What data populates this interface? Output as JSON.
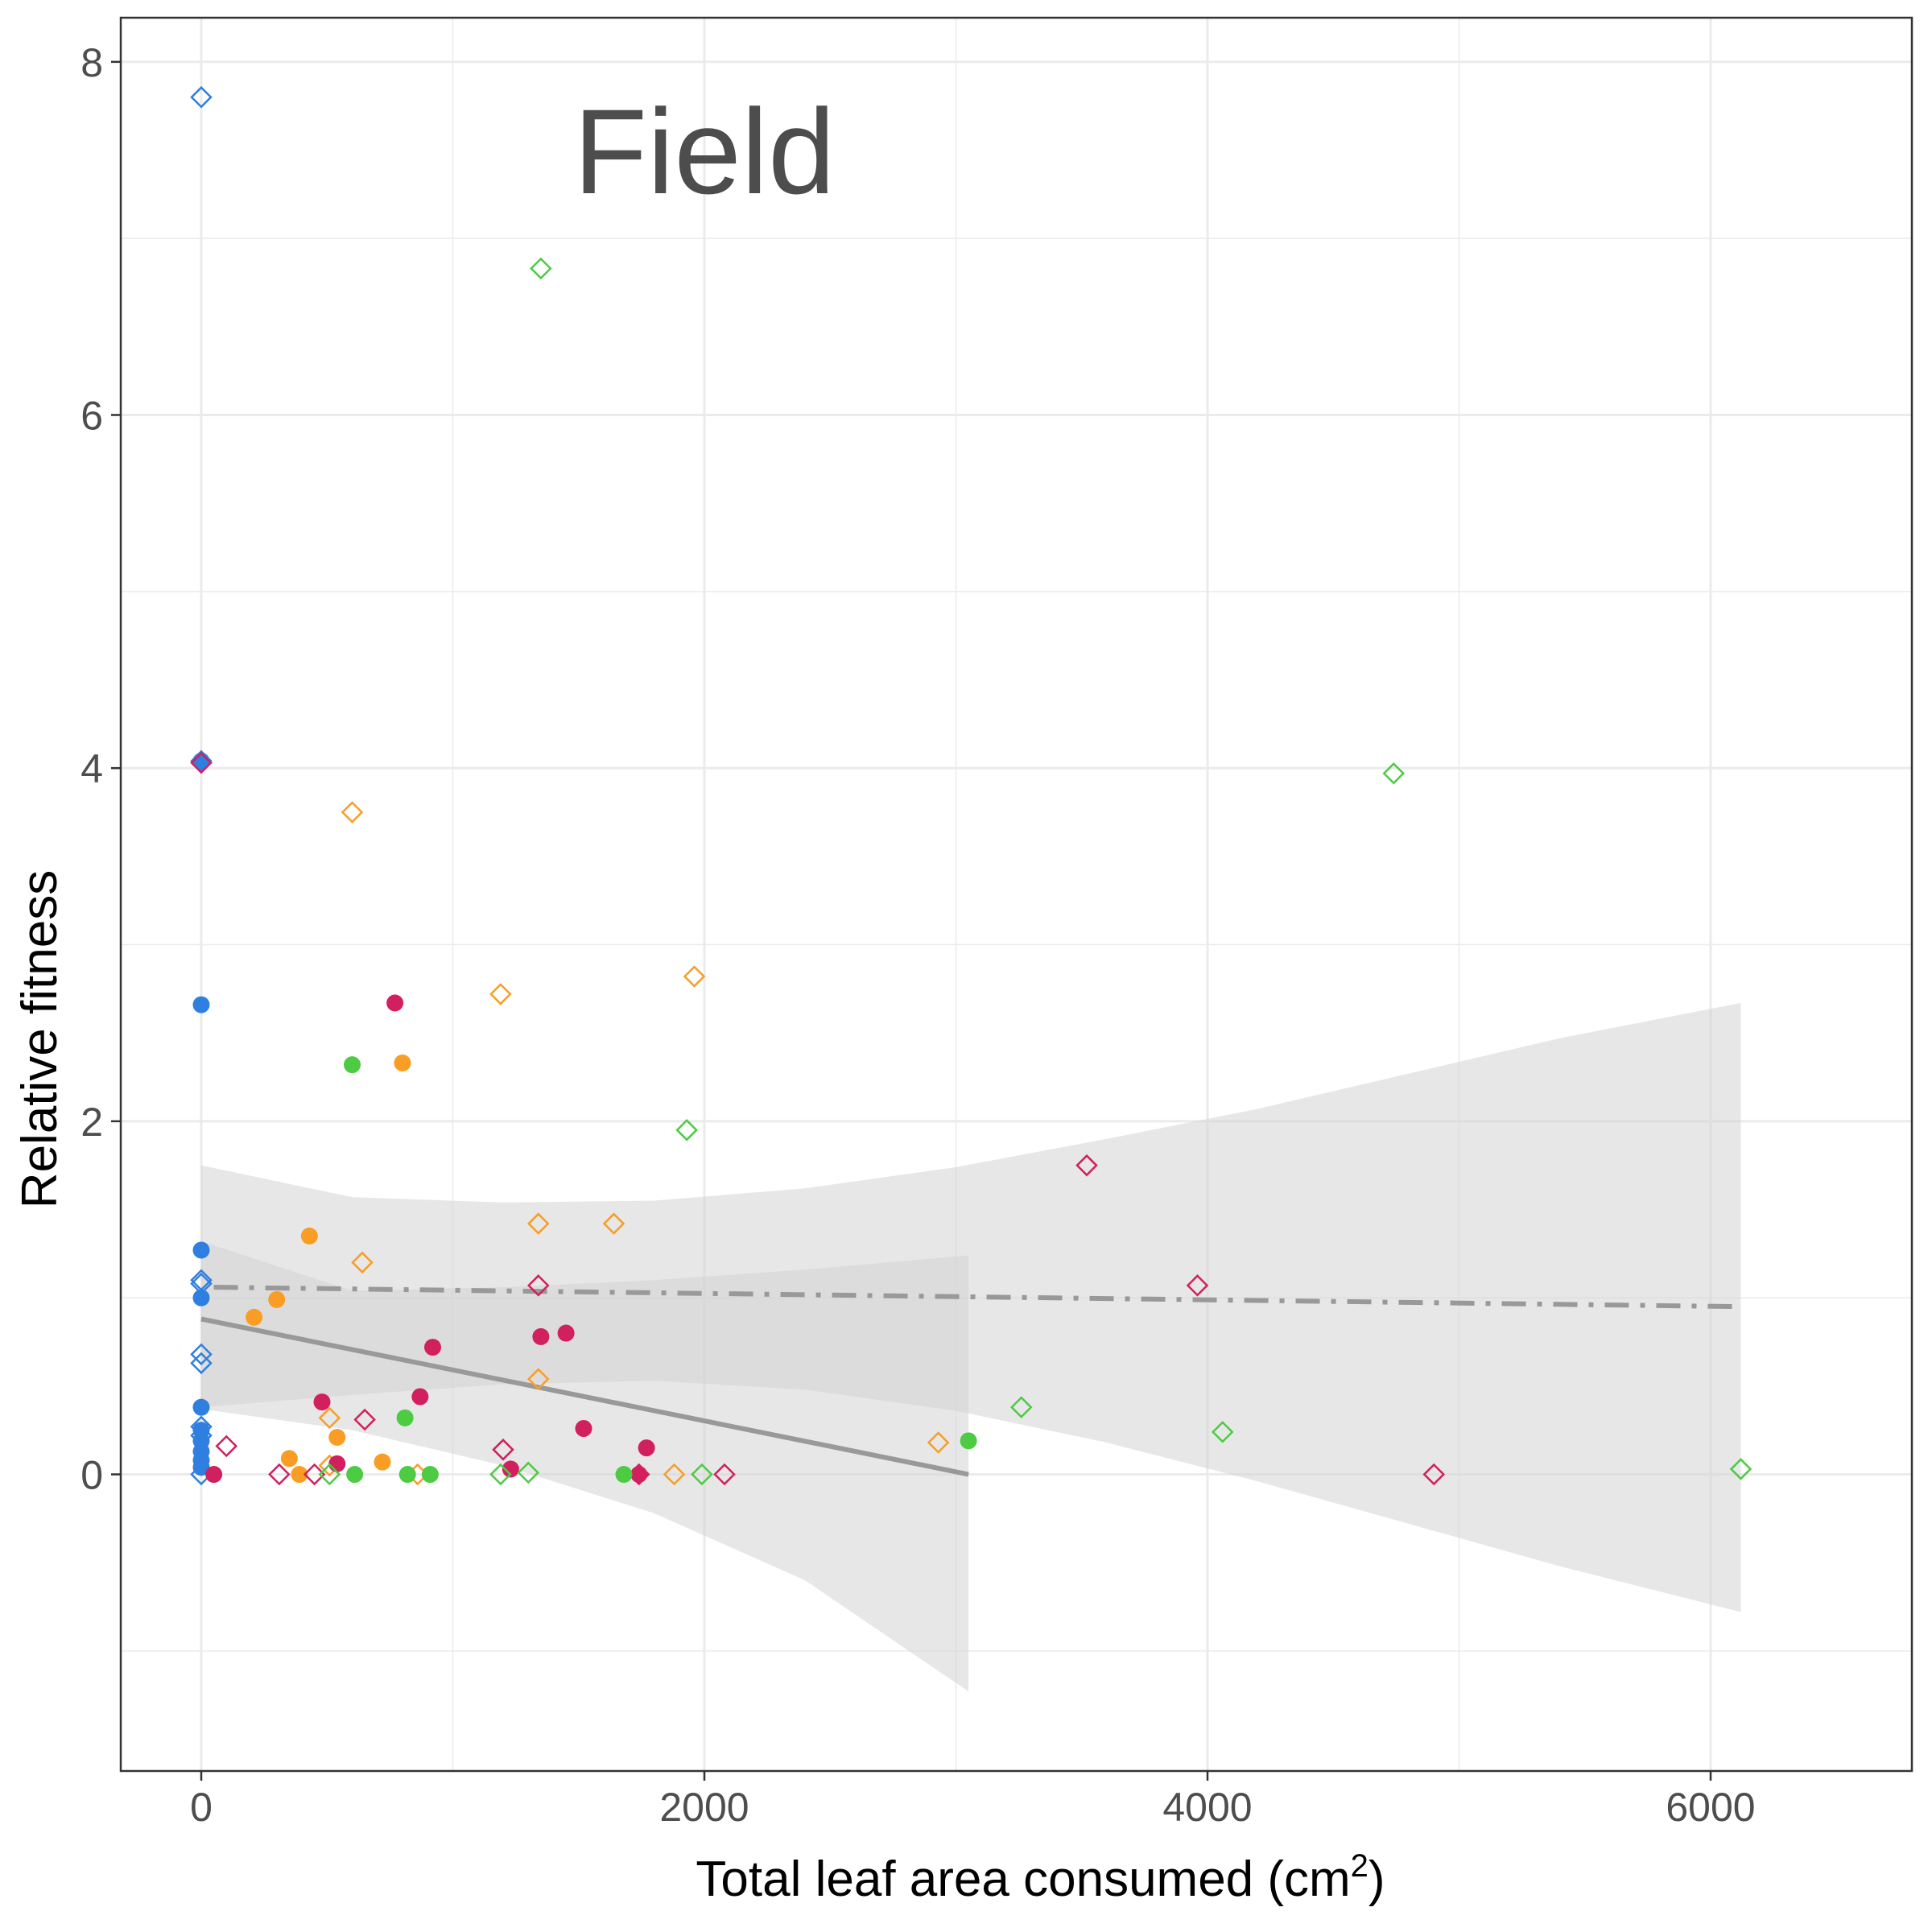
{
  "chart_data": {
    "type": "scatter",
    "title": "Field",
    "xlabel": "Total leaf area consumed (cm",
    "xlabel_superscript": "2",
    "xlabel_suffix": ")",
    "ylabel": "Relative fitness",
    "xlim": [
      -320,
      6800
    ],
    "ylim": [
      -1.68,
      8.25
    ],
    "x_ticks": [
      0,
      2000,
      4000,
      6000
    ],
    "x_tick_labels": [
      "0",
      "2000",
      "4000",
      "6000"
    ],
    "y_ticks": [
      0,
      2,
      4,
      6,
      8
    ],
    "y_tick_labels": [
      "0",
      "2",
      "4",
      "6",
      "8"
    ],
    "x_minor_grid": [
      1000,
      3000,
      5000
    ],
    "y_minor_grid": [
      -1,
      1,
      3,
      5,
      7
    ],
    "grid": true,
    "colors": {
      "blue": "#2f7fe0",
      "orange": "#f99d25",
      "crimson": "#d21f5e",
      "green": "#4ccb43",
      "fit_line": "#999999",
      "ribbon": "#d4d4d4",
      "grid": "#ebebeb",
      "border": "#333333"
    },
    "series": [
      {
        "color": "blue",
        "shape": "circle",
        "points": [
          [
            0,
            4.04
          ],
          [
            0,
            2.66
          ],
          [
            0,
            1.27
          ],
          [
            0,
            1.0
          ],
          [
            0,
            0.38
          ],
          [
            0,
            0.25
          ],
          [
            0,
            0.19
          ],
          [
            0,
            0.13
          ],
          [
            0,
            0.08
          ],
          [
            0,
            0.04
          ]
        ]
      },
      {
        "color": "blue",
        "shape": "diamond",
        "points": [
          [
            0,
            7.8
          ],
          [
            0,
            4.04
          ],
          [
            0,
            1.1
          ],
          [
            0,
            1.08
          ],
          [
            0,
            0.68
          ],
          [
            0,
            0.63
          ],
          [
            0,
            0.27
          ],
          [
            0,
            0.22
          ],
          [
            0,
            0.0
          ]
        ]
      },
      {
        "color": "orange",
        "shape": "circle",
        "points": [
          [
            210,
            0.89
          ],
          [
            300,
            0.99
          ],
          [
            430,
            1.35
          ],
          [
            350,
            0.09
          ],
          [
            390,
            0.0
          ],
          [
            540,
            0.21
          ],
          [
            720,
            0.07
          ],
          [
            800,
            2.33
          ]
        ]
      },
      {
        "color": "orange",
        "shape": "diamond",
        "points": [
          [
            600,
            3.75
          ],
          [
            1190,
            2.72
          ],
          [
            1960,
            2.82
          ],
          [
            640,
            1.2
          ],
          [
            1340,
            1.42
          ],
          [
            1640,
            1.42
          ],
          [
            1340,
            0.54
          ],
          [
            510,
            0.32
          ],
          [
            510,
            0.05
          ],
          [
            860,
            0.0
          ],
          [
            1880,
            0.0
          ],
          [
            2930,
            0.18
          ]
        ]
      },
      {
        "color": "crimson",
        "shape": "circle",
        "points": [
          [
            770,
            2.67
          ],
          [
            920,
            0.72
          ],
          [
            870,
            0.44
          ],
          [
            1350,
            0.78
          ],
          [
            1450,
            0.8
          ],
          [
            480,
            0.41
          ],
          [
            1520,
            0.26
          ],
          [
            1770,
            0.15
          ],
          [
            540,
            0.06
          ],
          [
            1230,
            0.03
          ],
          [
            50,
            0.0
          ],
          [
            1740,
            0.0
          ]
        ]
      },
      {
        "color": "crimson",
        "shape": "diamond",
        "points": [
          [
            0,
            4.03
          ],
          [
            3520,
            1.75
          ],
          [
            3960,
            1.07
          ],
          [
            1340,
            1.07
          ],
          [
            650,
            0.31
          ],
          [
            100,
            0.16
          ],
          [
            1200,
            0.14
          ],
          [
            310,
            0.0
          ],
          [
            450,
            0.0
          ],
          [
            1740,
            0.0
          ],
          [
            2080,
            0.0
          ],
          [
            4900,
            0.0
          ]
        ]
      },
      {
        "color": "green",
        "shape": "circle",
        "points": [
          [
            600,
            2.32
          ],
          [
            810,
            0.32
          ],
          [
            3050,
            0.19
          ],
          [
            610,
            0.0
          ],
          [
            820,
            0.0
          ],
          [
            910,
            0.0
          ],
          [
            1680,
            0.0
          ]
        ]
      },
      {
        "color": "green",
        "shape": "diamond",
        "points": [
          [
            1350,
            6.83
          ],
          [
            4740,
            3.97
          ],
          [
            1930,
            1.95
          ],
          [
            3260,
            0.38
          ],
          [
            4060,
            0.24
          ],
          [
            6120,
            0.03
          ],
          [
            510,
            0.0
          ],
          [
            1190,
            0.0
          ],
          [
            1300,
            0.01
          ],
          [
            1990,
            0.0
          ]
        ]
      }
    ],
    "fit_lines": [
      {
        "style": "solid",
        "x": [
          0,
          3050
        ],
        "y": [
          0.88,
          0.0
        ],
        "ribbon_x": [
          0,
          600,
          1200,
          1800,
          2400,
          3050
        ],
        "ribbon_lower": [
          0.37,
          0.25,
          0.05,
          -0.22,
          -0.6,
          -1.23
        ],
        "ribbon_upper": [
          1.32,
          1.04,
          1.06,
          1.1,
          1.16,
          1.24
        ]
      },
      {
        "style": "dashdot",
        "x": [
          50,
          6120
        ],
        "y": [
          1.06,
          0.95
        ],
        "ribbon_x": [
          0,
          600,
          1200,
          1800,
          2400,
          3000,
          3600,
          4200,
          4800,
          5400,
          6120
        ],
        "ribbon_lower": [
          0.38,
          0.45,
          0.51,
          0.53,
          0.48,
          0.36,
          0.18,
          -0.04,
          -0.28,
          -0.52,
          -0.78
        ],
        "ribbon_upper": [
          1.75,
          1.57,
          1.54,
          1.55,
          1.62,
          1.74,
          1.9,
          2.07,
          2.27,
          2.47,
          2.67
        ]
      }
    ]
  }
}
